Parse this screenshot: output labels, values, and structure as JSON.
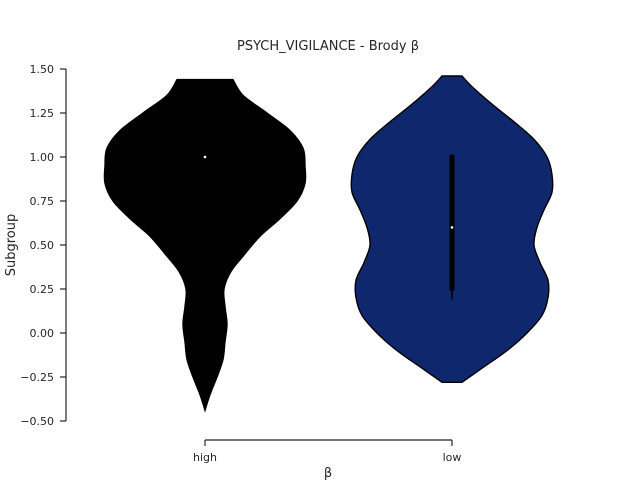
{
  "chart_data": {
    "type": "violin",
    "title": "PSYCH_VIGILANCE - Brody β",
    "xlabel": "β",
    "ylabel": "Subgroup",
    "categories": [
      "high",
      "low"
    ],
    "ylim": [
      -0.5,
      1.5
    ],
    "yticks": [
      "−0.50",
      "−0.25",
      "0.00",
      "0.25",
      "0.50",
      "0.75",
      "1.00",
      "1.25",
      "1.50"
    ],
    "ytick_values": [
      -0.5,
      -0.25,
      0.0,
      0.25,
      0.5,
      0.75,
      1.0,
      1.25,
      1.5
    ],
    "grid": false,
    "violins": [
      {
        "category": "high",
        "color": "#000000",
        "median": 1.0,
        "q1": 1.0,
        "q3": 1.0,
        "whisker_low": 1.0,
        "whisker_high": 1.0,
        "range": [
          -0.44,
          1.44
        ],
        "density": [
          [
            -0.44,
            0.0
          ],
          [
            -0.35,
            0.05
          ],
          [
            -0.25,
            0.12
          ],
          [
            -0.15,
            0.18
          ],
          [
            -0.05,
            0.2
          ],
          [
            0.05,
            0.22
          ],
          [
            0.15,
            0.2
          ],
          [
            0.25,
            0.19
          ],
          [
            0.35,
            0.26
          ],
          [
            0.45,
            0.4
          ],
          [
            0.55,
            0.55
          ],
          [
            0.65,
            0.75
          ],
          [
            0.75,
            0.92
          ],
          [
            0.85,
            1.0
          ],
          [
            0.95,
            1.0
          ],
          [
            1.05,
            0.98
          ],
          [
            1.15,
            0.85
          ],
          [
            1.25,
            0.62
          ],
          [
            1.35,
            0.38
          ],
          [
            1.44,
            0.28
          ]
        ]
      },
      {
        "category": "low",
        "color": "#0f276d",
        "median": 0.6,
        "q1": 0.25,
        "q3": 1.0,
        "whisker_low": 0.19,
        "whisker_high": 1.0,
        "range": [
          -0.28,
          1.46
        ],
        "density": [
          [
            -0.28,
            0.1
          ],
          [
            -0.2,
            0.3
          ],
          [
            -0.1,
            0.55
          ],
          [
            0.0,
            0.75
          ],
          [
            0.1,
            0.9
          ],
          [
            0.2,
            0.96
          ],
          [
            0.3,
            0.96
          ],
          [
            0.4,
            0.88
          ],
          [
            0.5,
            0.82
          ],
          [
            0.6,
            0.85
          ],
          [
            0.7,
            0.92
          ],
          [
            0.8,
            1.0
          ],
          [
            0.9,
            1.0
          ],
          [
            1.0,
            0.95
          ],
          [
            1.1,
            0.82
          ],
          [
            1.2,
            0.62
          ],
          [
            1.3,
            0.4
          ],
          [
            1.4,
            0.2
          ],
          [
            1.46,
            0.1
          ]
        ]
      }
    ]
  }
}
